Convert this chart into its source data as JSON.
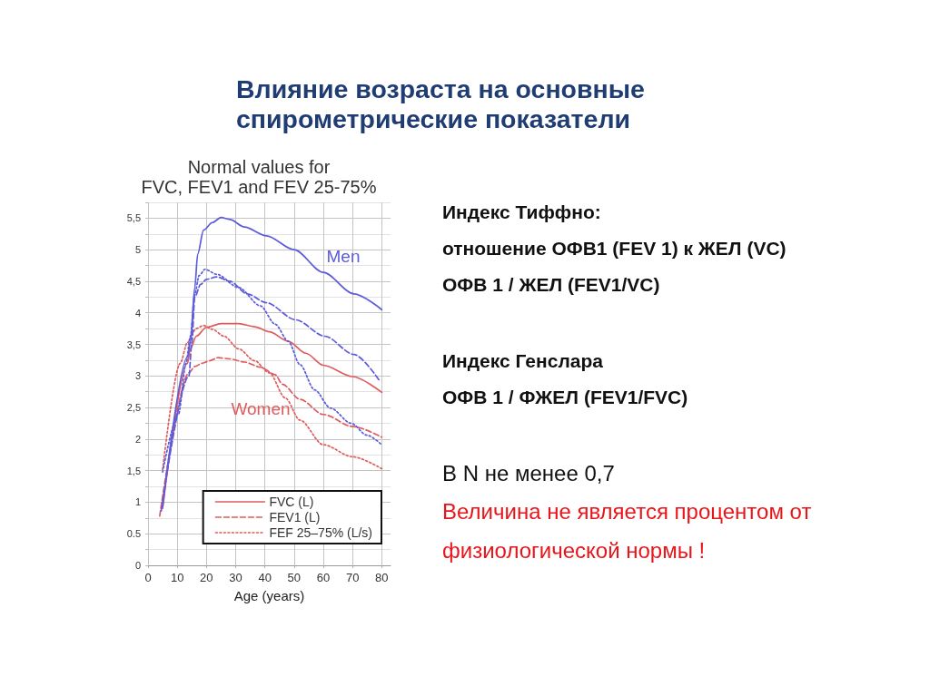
{
  "chart_data": {
    "type": "line",
    "title": "Влияние возраста на основные спирометрические показатели",
    "subtitle": "Normal values for\nFVC, FEV1 and FEV 25-75%",
    "xlabel": "Age (years)",
    "xlim": [
      0,
      83
    ],
    "xticks": [
      0,
      10,
      20,
      30,
      40,
      50,
      60,
      70,
      80
    ],
    "ylim": [
      0,
      5.75
    ],
    "yticks": [
      0,
      {
        "value": 0.25,
        "label": null
      },
      0.5,
      {
        "value": 0.75,
        "label": null
      },
      1,
      {
        "value": 1.25,
        "label": null
      },
      {
        "value": 1.5,
        "label": "1,5"
      },
      {
        "value": 1.75,
        "label": null
      },
      2,
      {
        "value": 2.25,
        "label": null
      },
      {
        "value": 2.5,
        "label": "2,5"
      },
      {
        "value": 2.75,
        "label": null
      },
      3,
      {
        "value": 3.25,
        "label": null
      },
      {
        "value": 3.5,
        "label": "3,5"
      },
      {
        "value": 3.75,
        "label": null
      },
      4,
      {
        "value": 4.25,
        "label": null
      },
      {
        "value": 4.5,
        "label": "4,5"
      },
      {
        "value": 4.75,
        "label": null
      },
      5,
      {
        "value": 5.25,
        "label": null
      },
      {
        "value": 5.5,
        "label": "5,5"
      },
      {
        "value": 5.75,
        "label": null
      }
    ],
    "grid": true,
    "legend": "bottom right",
    "marker": "none",
    "series": [
      {
        "color": "#5b5bdc",
        "line_style": "solid",
        "x": [
          5,
          13.5,
          14.5,
          16,
          17,
          19,
          22,
          25,
          28,
          33,
          40.5,
          50,
          60,
          70.5,
          80
        ],
        "values": [
          0.93,
          3.3,
          3.53,
          4.4,
          4.93,
          5.31,
          5.43,
          5.51,
          5.48,
          5.36,
          5.22,
          5.0,
          4.64,
          4.3,
          4.05
        ]
      },
      {
        "color": "#5b5bdc",
        "line_style": "dashed",
        "x": [
          4.5,
          14,
          15,
          16,
          18,
          20,
          23.5,
          28,
          34,
          40.5,
          50.5,
          60.5,
          70.5,
          79
        ],
        "values": [
          0.86,
          3.0,
          3.53,
          4.25,
          4.45,
          4.53,
          4.57,
          4.5,
          4.3,
          4.16,
          3.89,
          3.63,
          3.34,
          2.94
        ]
      },
      {
        "color": "#5b5bdc",
        "line_style": "dotted",
        "x": [
          5,
          10.4,
          13,
          14.5,
          16,
          17.5,
          19.5,
          23.5,
          31,
          38.5,
          43.5,
          48,
          52,
          57,
          62.5,
          69.5,
          75,
          80
        ],
        "values": [
          1.48,
          2.39,
          3.2,
          3.63,
          4.3,
          4.59,
          4.69,
          4.61,
          4.4,
          4.11,
          3.82,
          3.55,
          3.18,
          2.78,
          2.49,
          2.25,
          2.06,
          1.91
        ]
      },
      {
        "name": "FVC (L)",
        "color": "#e05c5c",
        "line_style": "solid",
        "x": [
          5,
          13.5,
          14.5,
          16.5,
          20,
          25,
          31,
          36.5,
          41.5,
          48,
          54,
          60,
          70,
          80
        ],
        "values": [
          0.9,
          3.2,
          3.43,
          3.63,
          3.77,
          3.83,
          3.83,
          3.78,
          3.7,
          3.55,
          3.36,
          3.17,
          2.99,
          2.74
        ]
      },
      {
        "name": "FEV1 (L)",
        "color": "#e05c5c",
        "line_style": "dashed",
        "x": [
          4,
          14,
          16,
          18.5,
          21,
          24,
          28,
          33,
          38.5,
          43.5,
          46,
          52,
          60,
          70,
          80
        ],
        "values": [
          0.78,
          3.05,
          3.15,
          3.2,
          3.24,
          3.29,
          3.27,
          3.22,
          3.14,
          3.02,
          2.87,
          2.63,
          2.39,
          2.2,
          2.03
        ]
      },
      {
        "name": "FEF 25–75% (L/s)",
        "color": "#e05c5c",
        "line_style": "dotted",
        "x": [
          5,
          11,
          13.5,
          16.5,
          19,
          22,
          26,
          31,
          36.5,
          41.5,
          47,
          52,
          60,
          70,
          80
        ],
        "values": [
          1.52,
          3.2,
          3.53,
          3.75,
          3.8,
          3.74,
          3.63,
          3.43,
          3.24,
          3.05,
          2.65,
          2.3,
          1.91,
          1.72,
          1.53
        ]
      }
    ],
    "annotations": [
      "Men",
      "Women",
      "Индекс Тиффно:",
      "отношение ОФВ1 (FEV 1) к ЖЕЛ (VC)",
      "ОФВ 1 / ЖЕЛ (FEV1/VC)",
      "Индекс Генслара",
      "ОФВ 1 / ФЖЕЛ (FEV1/FVC)",
      "В N не менее 0,7",
      "Величина не является процентом от физиологической нормы !"
    ]
  }
}
